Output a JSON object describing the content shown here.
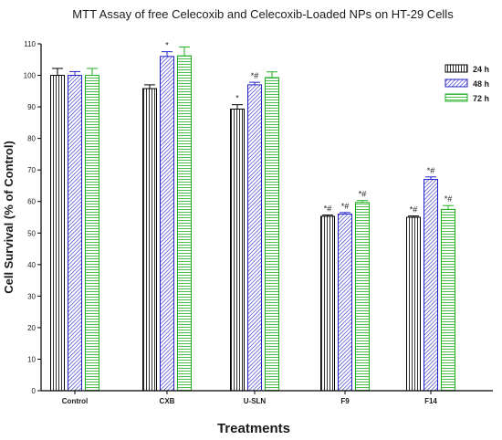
{
  "chart_data": {
    "type": "bar",
    "title": "MTT Assay of free Celecoxib and Celecoxib-Loaded NPs on HT-29 Cells",
    "xlabel": "Treatments",
    "ylabel": "Cell Survival (% of Control)",
    "ylim": [
      0,
      110
    ],
    "yticks": [
      0,
      10,
      20,
      30,
      40,
      50,
      60,
      70,
      80,
      90,
      100,
      110
    ],
    "categories": [
      "Control",
      "CXB",
      "U-SLN",
      "F9",
      "F14"
    ],
    "legend_position": "top-right",
    "series": [
      {
        "name": "24 h",
        "color": "#000000",
        "pattern": "vertical-lines",
        "values": [
          100,
          95.8,
          89.3,
          55.3,
          55.0
        ],
        "errors": [
          2.2,
          1.2,
          1.4,
          0.4,
          0.4
        ],
        "annotations": [
          "",
          "",
          "*",
          "*#",
          "*#"
        ]
      },
      {
        "name": "48 h",
        "color": "#2323c8",
        "pattern": "diagonal-lines",
        "values": [
          100,
          106.0,
          97.0,
          56.0,
          67.0
        ],
        "errors": [
          1.2,
          1.5,
          0.8,
          0.5,
          0.8
        ],
        "annotations": [
          "",
          "*",
          "*#",
          "*#",
          "*#"
        ]
      },
      {
        "name": "72 h",
        "color": "#22b022",
        "pattern": "horizontal-lines",
        "values": [
          100,
          106.2,
          99.3,
          59.7,
          57.5
        ],
        "errors": [
          2.2,
          2.8,
          1.8,
          0.6,
          1.2
        ],
        "annotations": [
          "",
          "",
          "",
          "*#",
          "*#"
        ]
      }
    ]
  }
}
